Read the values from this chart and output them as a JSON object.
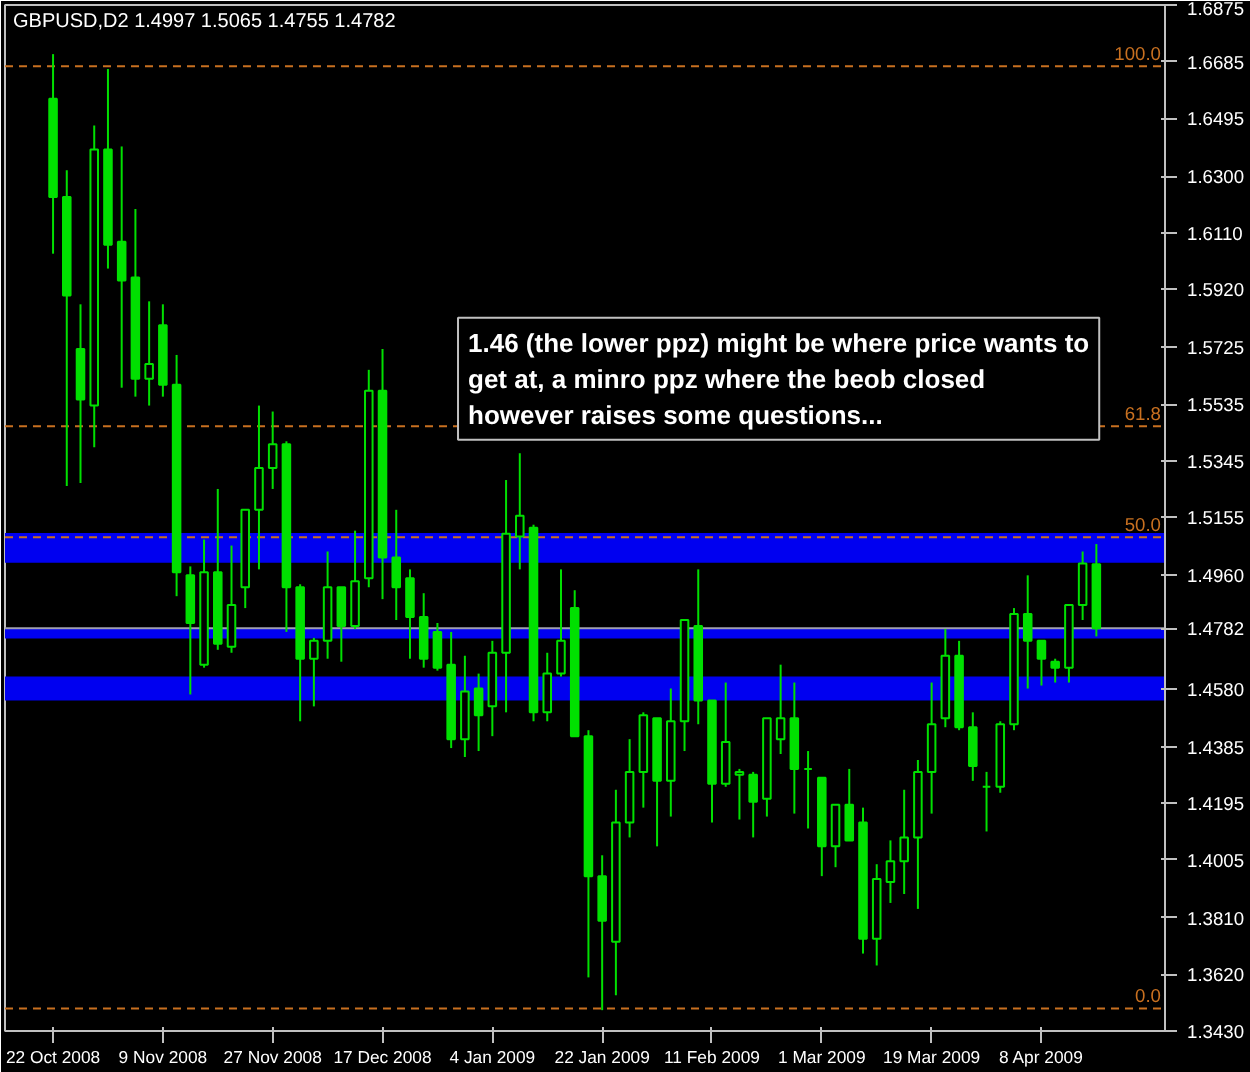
{
  "chart_data": {
    "type": "candlestick",
    "title": "GBPUSD,D2  1.4997 1.5065 1.4755 1.4782",
    "categories": [
      "22 Oct 2008",
      null,
      null,
      null,
      null,
      null,
      null,
      null,
      "9 Nov 2008",
      null,
      null,
      null,
      null,
      null,
      null,
      null,
      "27 Nov 2008",
      null,
      null,
      null,
      null,
      null,
      null,
      null,
      "17 Dec 2008",
      null,
      null,
      null,
      null,
      null,
      null,
      null,
      "4 Jan 2009",
      null,
      null,
      null,
      null,
      null,
      null,
      null,
      "22 Jan 2009",
      null,
      null,
      null,
      null,
      null,
      null,
      null,
      "11 Feb 2009",
      null,
      null,
      null,
      null,
      null,
      null,
      null,
      "1 Mar 2009",
      null,
      null,
      null,
      null,
      null,
      null,
      null,
      "19 Mar 2009",
      null,
      null,
      null,
      null,
      null,
      null,
      null,
      "8 Apr 2009",
      null,
      null,
      null,
      null
    ],
    "ohlc": [
      [
        1.656,
        1.671,
        1.604,
        1.623
      ],
      [
        1.623,
        1.632,
        1.526,
        1.59
      ],
      [
        1.572,
        1.587,
        1.527,
        1.555
      ],
      [
        1.553,
        1.647,
        1.539,
        1.639
      ],
      [
        1.639,
        1.666,
        1.599,
        1.607
      ],
      [
        1.608,
        1.64,
        1.559,
        1.595
      ],
      [
        1.596,
        1.619,
        1.556,
        1.562
      ],
      [
        1.562,
        1.588,
        1.553,
        1.567
      ],
      [
        1.58,
        1.587,
        1.556,
        1.56
      ],
      [
        1.56,
        1.57,
        1.489,
        1.497
      ],
      [
        1.496,
        1.499,
        1.456,
        1.48
      ],
      [
        1.466,
        1.508,
        1.465,
        1.497
      ],
      [
        1.497,
        1.525,
        1.471,
        1.473
      ],
      [
        1.472,
        1.506,
        1.47,
        1.486
      ],
      [
        1.492,
        1.518,
        1.485,
        1.518
      ],
      [
        1.518,
        1.553,
        1.498,
        1.532
      ],
      [
        1.532,
        1.551,
        1.525,
        1.54
      ],
      [
        1.54,
        1.541,
        1.477,
        1.492
      ],
      [
        1.492,
        1.493,
        1.447,
        1.468
      ],
      [
        1.468,
        1.475,
        1.452,
        1.474
      ],
      [
        1.474,
        1.504,
        1.468,
        1.492
      ],
      [
        1.492,
        1.492,
        1.467,
        1.479
      ],
      [
        1.479,
        1.511,
        1.478,
        1.494
      ],
      [
        1.495,
        1.565,
        1.492,
        1.558
      ],
      [
        1.558,
        1.572,
        1.488,
        1.502
      ],
      [
        1.502,
        1.518,
        1.481,
        1.492
      ],
      [
        1.495,
        1.498,
        1.468,
        1.482
      ],
      [
        1.482,
        1.49,
        1.465,
        1.468
      ],
      [
        1.477,
        1.48,
        1.464,
        1.465
      ],
      [
        1.466,
        1.477,
        1.438,
        1.441
      ],
      [
        1.441,
        1.469,
        1.435,
        1.457
      ],
      [
        1.458,
        1.463,
        1.437,
        1.449
      ],
      [
        1.452,
        1.474,
        1.442,
        1.47
      ],
      [
        1.47,
        1.528,
        1.45,
        1.51
      ],
      [
        1.509,
        1.537,
        1.498,
        1.516
      ],
      [
        1.512,
        1.513,
        1.447,
        1.45
      ],
      [
        1.45,
        1.47,
        1.447,
        1.463
      ],
      [
        1.463,
        1.498,
        1.462,
        1.474
      ],
      [
        1.485,
        1.491,
        1.442,
        1.442
      ],
      [
        1.442,
        1.444,
        1.361,
        1.395
      ],
      [
        1.395,
        1.402,
        1.35,
        1.38
      ],
      [
        1.373,
        1.424,
        1.355,
        1.413
      ],
      [
        1.413,
        1.441,
        1.408,
        1.43
      ],
      [
        1.43,
        1.45,
        1.418,
        1.449
      ],
      [
        1.448,
        1.448,
        1.405,
        1.427
      ],
      [
        1.427,
        1.458,
        1.415,
        1.447
      ],
      [
        1.447,
        1.481,
        1.437,
        1.481
      ],
      [
        1.479,
        1.498,
        1.446,
        1.454
      ],
      [
        1.454,
        1.454,
        1.413,
        1.426
      ],
      [
        1.426,
        1.46,
        1.425,
        1.44
      ],
      [
        1.429,
        1.431,
        1.414,
        1.43
      ],
      [
        1.429,
        1.43,
        1.408,
        1.42
      ],
      [
        1.421,
        1.448,
        1.415,
        1.448
      ],
      [
        1.441,
        1.466,
        1.436,
        1.448
      ],
      [
        1.448,
        1.46,
        1.416,
        1.431
      ],
      [
        1.431,
        1.437,
        1.411,
        1.431
      ],
      [
        1.428,
        1.428,
        1.395,
        1.405
      ],
      [
        1.405,
        1.419,
        1.398,
        1.419
      ],
      [
        1.419,
        1.431,
        1.407,
        1.407
      ],
      [
        1.413,
        1.418,
        1.369,
        1.374
      ],
      [
        1.374,
        1.399,
        1.365,
        1.394
      ],
      [
        1.393,
        1.407,
        1.386,
        1.4
      ],
      [
        1.4,
        1.424,
        1.389,
        1.408
      ],
      [
        1.408,
        1.434,
        1.384,
        1.43
      ],
      [
        1.43,
        1.46,
        1.416,
        1.446
      ],
      [
        1.448,
        1.478,
        1.445,
        1.469
      ],
      [
        1.469,
        1.474,
        1.444,
        1.445
      ],
      [
        1.445,
        1.45,
        1.427,
        1.432
      ],
      [
        1.425,
        1.43,
        1.41,
        1.425
      ],
      [
        1.425,
        1.447,
        1.423,
        1.446
      ],
      [
        1.446,
        1.485,
        1.444,
        1.483
      ],
      [
        1.483,
        1.496,
        1.458,
        1.474
      ],
      [
        1.474,
        1.474,
        1.459,
        1.468
      ],
      [
        1.467,
        1.468,
        1.46,
        1.465
      ],
      [
        1.465,
        1.486,
        1.46,
        1.486
      ],
      [
        1.486,
        1.504,
        1.481,
        1.5
      ],
      [
        1.4997,
        1.5065,
        1.4755,
        1.4782
      ]
    ],
    "color": "#00e000",
    "ylim": [
      1.343,
      1.6875
    ],
    "yticks": [
      1.6875,
      1.6685,
      1.6495,
      {
        "value": 1.63,
        "label": "1.6300"
      },
      {
        "value": 1.611,
        "label": "1.6110"
      },
      {
        "value": 1.592,
        "label": "1.5920"
      },
      1.5725,
      1.5535,
      1.5345,
      1.5155,
      {
        "value": 1.496,
        "label": "1.4960"
      },
      1.4782,
      {
        "value": 1.458,
        "label": "1.4580"
      },
      1.4385,
      1.4195,
      1.4005,
      {
        "value": 1.381,
        "label": "1.3810"
      },
      {
        "value": 1.362,
        "label": "1.3620"
      },
      {
        "value": 1.343,
        "label": "1.3430"
      }
    ],
    "ref_lines": [
      {
        "axis": "y2",
        "value": 100.0,
        "label": "100.0",
        "color": "#c87020",
        "line_style": "dashed"
      },
      {
        "axis": "y2",
        "value": 61.8,
        "label": "61.8",
        "color": "#c87020",
        "line_style": "dashed"
      },
      {
        "axis": "y2",
        "value": 50.0,
        "label": "50.0",
        "color": "#c87020",
        "line_style": "dashed"
      },
      {
        "axis": "y2",
        "value": 0.0,
        "label": "0.0",
        "color": "#c87020",
        "line_style": "dashed"
      },
      {
        "axis": "y",
        "value": 1.4782,
        "color": "#a0a0b0",
        "line_style": "solid"
      }
    ],
    "y2lim": [
      -2.4,
      106.5
    ],
    "bands": [
      {
        "axis": "y",
        "from": 1.454,
        "to": 1.462,
        "color": "#0000f0"
      },
      {
        "axis": "y",
        "from": 1.4748,
        "to": 1.4782,
        "color": "#0000f0"
      },
      {
        "axis": "y",
        "from": 1.5002,
        "to": 1.5102,
        "color": "#0000f0"
      }
    ],
    "annotations": [
      "1.46 (the lower ppz) might be where price wants to\nget at, a minro ppz where the beob closed\nhowever raises some questions..."
    ]
  }
}
